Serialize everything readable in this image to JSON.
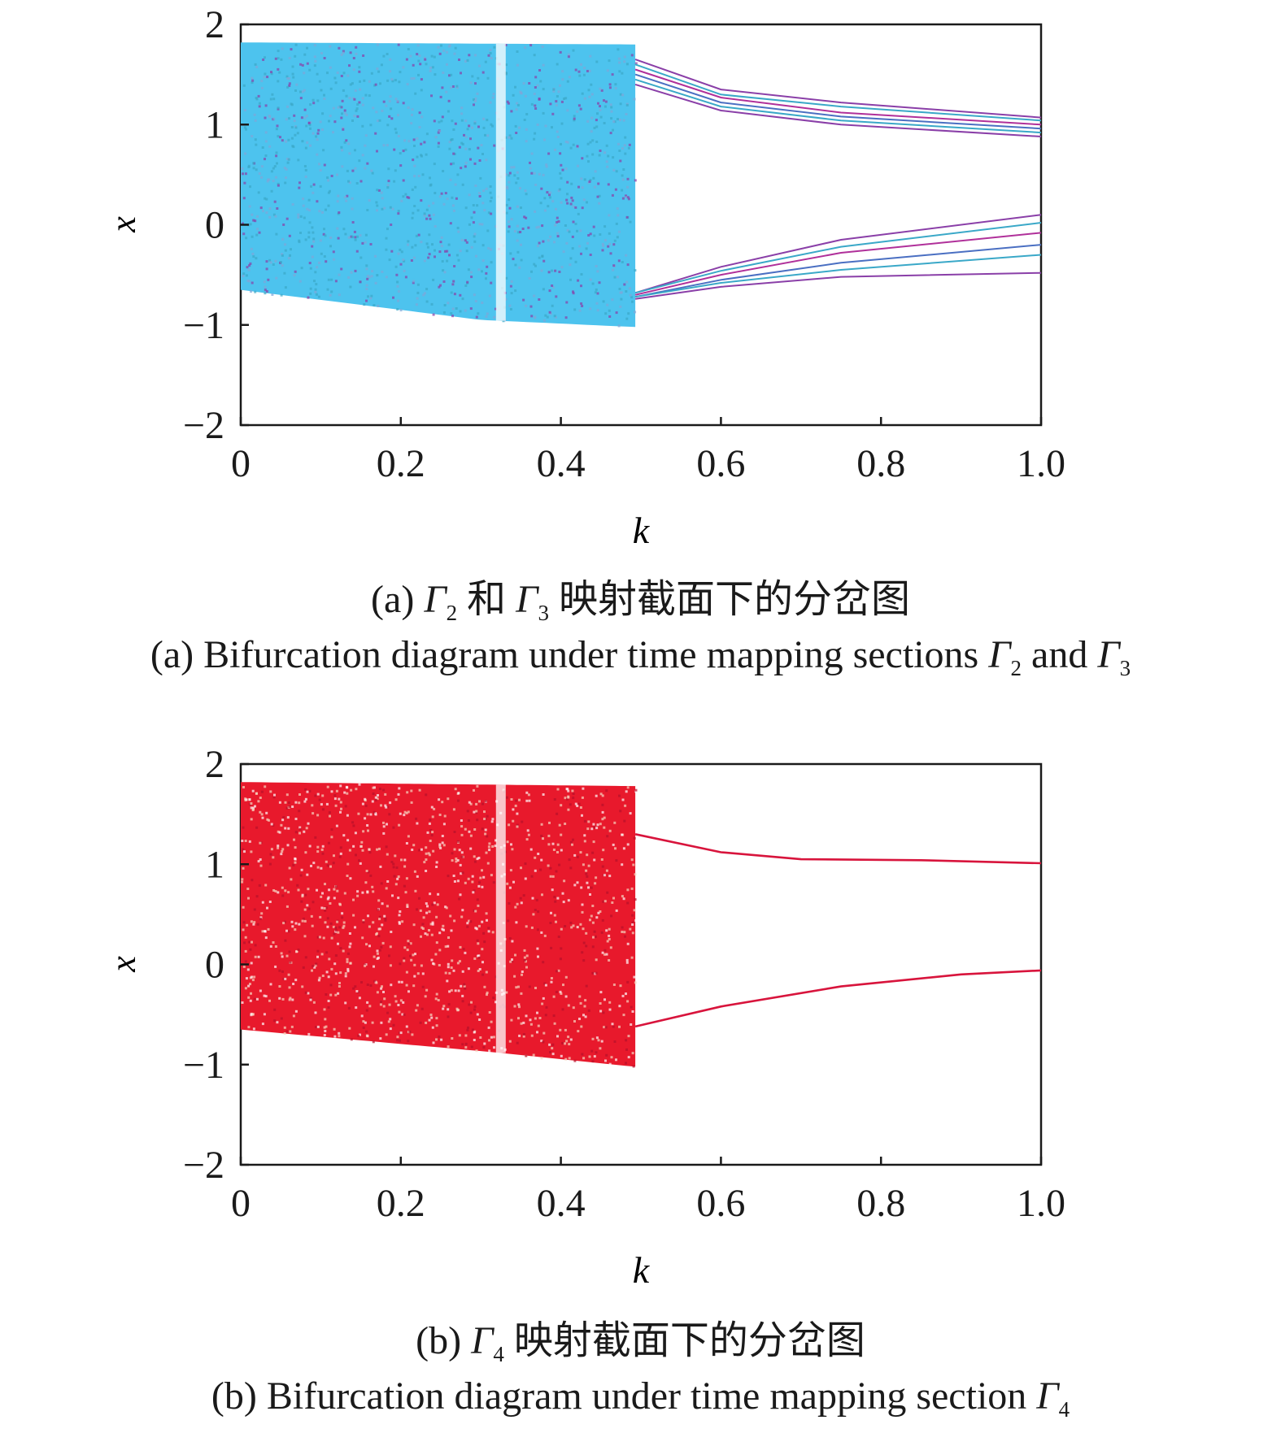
{
  "chart_data": [
    {
      "type": "scatter",
      "panel": "a",
      "xlabel": "k",
      "ylabel": "x",
      "xlim": [
        0,
        1.0
      ],
      "ylim": [
        -2,
        2
      ],
      "xticks": [
        "0",
        "0.2",
        "0.4",
        "0.6",
        "0.8",
        "1.0"
      ],
      "yticks": [
        "2",
        "1",
        "0",
        "−1",
        "−2"
      ],
      "grid": false,
      "legend": "none",
      "caption_zh": {
        "prefix": "(a) ",
        "g1": "Γ",
        "s1": "2",
        "mid": " 和 ",
        "g2": "Γ",
        "s2": "3",
        "suffix": " 映射截面下的分岔图"
      },
      "caption_en": {
        "prefix": "(a) Bifurcation diagram under time mapping sections ",
        "g1": "Γ",
        "s1": "2",
        "mid": " and ",
        "g2": "Γ",
        "s2": "3"
      },
      "colors": {
        "cyan": "#4dc3ee",
        "purple": "#8a3fa8",
        "magenta": "#b0309a",
        "teal": "#3aa8c8"
      },
      "chaotic_region": {
        "k_range": [
          0,
          0.493
        ],
        "x_top": [
          [
            0,
            1.82
          ],
          [
            0.49,
            1.8
          ]
        ],
        "x_bottom": [
          [
            0,
            -0.65
          ],
          [
            0.3,
            -0.95
          ],
          [
            0.49,
            -1.02
          ]
        ],
        "gap_k": 0.325
      },
      "branches": {
        "upper": [
          {
            "k": [
              0.493,
              0.6,
              0.75,
              1.0
            ],
            "x": [
              1.65,
              1.35,
              1.22,
              1.07
            ]
          },
          {
            "k": [
              0.493,
              0.6,
              0.75,
              1.0
            ],
            "x": [
              1.6,
              1.3,
              1.18,
              1.04
            ]
          },
          {
            "k": [
              0.493,
              0.6,
              0.75,
              1.0
            ],
            "x": [
              1.55,
              1.27,
              1.12,
              1.0
            ]
          },
          {
            "k": [
              0.493,
              0.6,
              0.75,
              1.0
            ],
            "x": [
              1.5,
              1.22,
              1.08,
              0.96
            ]
          },
          {
            "k": [
              0.493,
              0.6,
              0.75,
              1.0
            ],
            "x": [
              1.45,
              1.18,
              1.04,
              0.92
            ]
          },
          {
            "k": [
              0.493,
              0.6,
              0.75,
              1.0
            ],
            "x": [
              1.4,
              1.14,
              1.0,
              0.88
            ]
          }
        ],
        "lower": [
          {
            "k": [
              0.493,
              0.6,
              0.75,
              1.0
            ],
            "x": [
              -0.68,
              -0.42,
              -0.15,
              0.1
            ]
          },
          {
            "k": [
              0.493,
              0.6,
              0.75,
              1.0
            ],
            "x": [
              -0.68,
              -0.46,
              -0.22,
              0.02
            ]
          },
          {
            "k": [
              0.493,
              0.6,
              0.75,
              1.0
            ],
            "x": [
              -0.7,
              -0.5,
              -0.28,
              -0.08
            ]
          },
          {
            "k": [
              0.493,
              0.6,
              0.75,
              1.0
            ],
            "x": [
              -0.72,
              -0.55,
              -0.38,
              -0.2
            ]
          },
          {
            "k": [
              0.493,
              0.6,
              0.75,
              1.0
            ],
            "x": [
              -0.72,
              -0.58,
              -0.45,
              -0.3
            ]
          },
          {
            "k": [
              0.493,
              0.6,
              0.75,
              1.0
            ],
            "x": [
              -0.74,
              -0.62,
              -0.52,
              -0.48
            ]
          }
        ]
      }
    },
    {
      "type": "scatter",
      "panel": "b",
      "xlabel": "k",
      "ylabel": "x",
      "xlim": [
        0,
        1.0
      ],
      "ylim": [
        -2,
        2
      ],
      "xticks": [
        "0",
        "0.2",
        "0.4",
        "0.6",
        "0.8",
        "1.0"
      ],
      "yticks": [
        "2",
        "1",
        "0",
        "−1",
        "−2"
      ],
      "grid": false,
      "legend": "none",
      "caption_zh": {
        "prefix": "(b) ",
        "g1": "Γ",
        "s1": "4",
        "suffix": " 映射截面下的分岔图"
      },
      "caption_en": {
        "prefix": "(b) Bifurcation diagram under time mapping section ",
        "g1": "Γ",
        "s1": "4"
      },
      "colors": {
        "red": "#e8192c",
        "crimson": "#d8143c"
      },
      "chaotic_region": {
        "k_range": [
          0,
          0.493
        ],
        "x_top": [
          [
            0,
            1.82
          ],
          [
            0.49,
            1.78
          ]
        ],
        "x_bottom": [
          [
            0,
            -0.65
          ],
          [
            0.32,
            -0.88
          ],
          [
            0.49,
            -1.02
          ]
        ],
        "gap_k": 0.325
      },
      "branches": {
        "upper": [
          {
            "k": [
              0.493,
              0.6,
              0.7,
              0.85,
              1.0
            ],
            "x": [
              1.3,
              1.12,
              1.05,
              1.04,
              1.01
            ]
          }
        ],
        "lower": [
          {
            "k": [
              0.493,
              0.6,
              0.75,
              0.9,
              1.0
            ],
            "x": [
              -0.62,
              -0.42,
              -0.22,
              -0.1,
              -0.06
            ]
          }
        ]
      }
    }
  ]
}
